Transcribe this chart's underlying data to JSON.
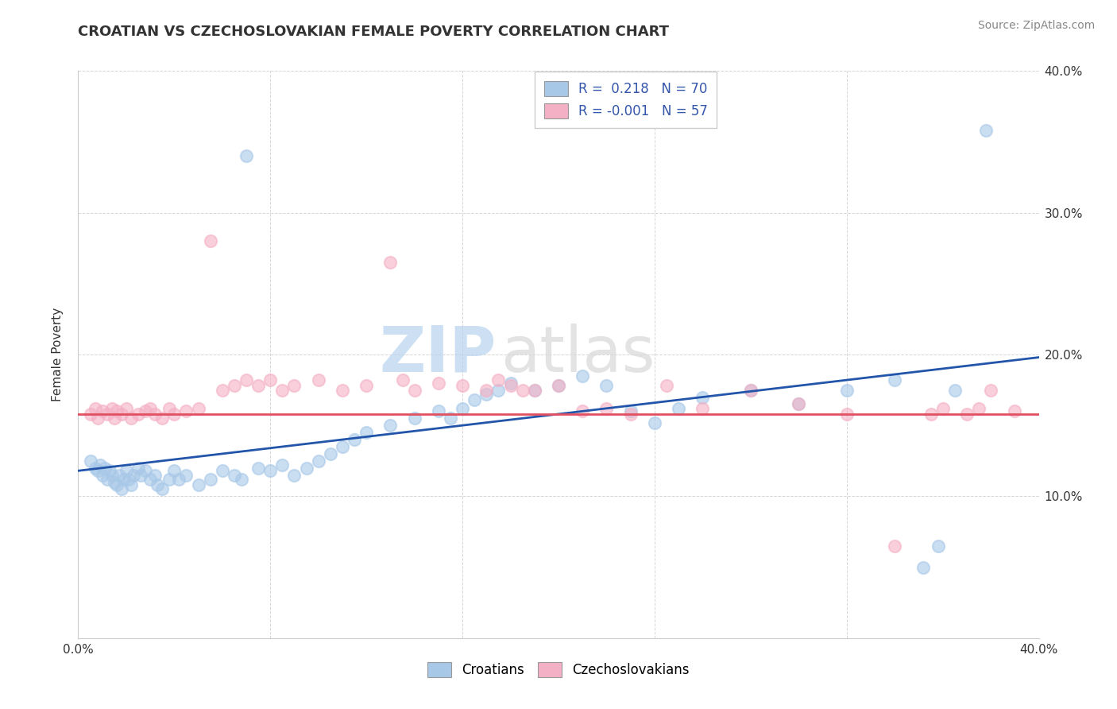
{
  "title": "CROATIAN VS CZECHOSLOVAKIAN FEMALE POVERTY CORRELATION CHART",
  "source": "Source: ZipAtlas.com",
  "ylabel": "Female Poverty",
  "xlim": [
    0.0,
    0.4
  ],
  "ylim": [
    0.0,
    0.4
  ],
  "croatian_R": 0.218,
  "croatian_N": 70,
  "czechoslovakian_R": -0.001,
  "czechoslovakian_N": 57,
  "croatian_color": "#a8c8e8",
  "czechoslovakian_color": "#f4b0c4",
  "croatian_line_color": "#2255aa",
  "czechoslovakian_line_color": "#e05060",
  "watermark_zip": "ZIP",
  "watermark_atlas": "atlas",
  "cro_line_y0": 0.118,
  "cro_line_y1": 0.198,
  "cze_line_y": 0.158,
  "cro_x": [
    0.005,
    0.007,
    0.008,
    0.009,
    0.01,
    0.011,
    0.012,
    0.013,
    0.014,
    0.015,
    0.016,
    0.017,
    0.018,
    0.019,
    0.02,
    0.021,
    0.022,
    0.023,
    0.025,
    0.026,
    0.028,
    0.03,
    0.032,
    0.033,
    0.035,
    0.038,
    0.04,
    0.042,
    0.045,
    0.05,
    0.055,
    0.06,
    0.065,
    0.068,
    0.07,
    0.075,
    0.08,
    0.085,
    0.09,
    0.095,
    0.1,
    0.105,
    0.11,
    0.115,
    0.12,
    0.13,
    0.14,
    0.15,
    0.155,
    0.16,
    0.165,
    0.17,
    0.175,
    0.18,
    0.19,
    0.2,
    0.21,
    0.22,
    0.23,
    0.24,
    0.25,
    0.26,
    0.28,
    0.3,
    0.32,
    0.34,
    0.352,
    0.358,
    0.365,
    0.378
  ],
  "cro_y": [
    0.125,
    0.12,
    0.118,
    0.122,
    0.115,
    0.12,
    0.112,
    0.118,
    0.115,
    0.11,
    0.108,
    0.115,
    0.105,
    0.112,
    0.118,
    0.112,
    0.108,
    0.115,
    0.12,
    0.115,
    0.118,
    0.112,
    0.115,
    0.108,
    0.105,
    0.112,
    0.118,
    0.112,
    0.115,
    0.108,
    0.112,
    0.118,
    0.115,
    0.112,
    0.34,
    0.12,
    0.118,
    0.122,
    0.115,
    0.12,
    0.125,
    0.13,
    0.135,
    0.14,
    0.145,
    0.15,
    0.155,
    0.16,
    0.155,
    0.162,
    0.168,
    0.172,
    0.175,
    0.18,
    0.175,
    0.178,
    0.185,
    0.178,
    0.16,
    0.152,
    0.162,
    0.17,
    0.175,
    0.165,
    0.175,
    0.182,
    0.05,
    0.065,
    0.175,
    0.358
  ],
  "cze_x": [
    0.005,
    0.007,
    0.008,
    0.01,
    0.012,
    0.014,
    0.015,
    0.016,
    0.018,
    0.02,
    0.022,
    0.025,
    0.028,
    0.03,
    0.032,
    0.035,
    0.038,
    0.04,
    0.045,
    0.05,
    0.055,
    0.06,
    0.065,
    0.07,
    0.075,
    0.08,
    0.085,
    0.09,
    0.1,
    0.11,
    0.12,
    0.13,
    0.135,
    0.14,
    0.15,
    0.16,
    0.17,
    0.175,
    0.18,
    0.185,
    0.19,
    0.2,
    0.21,
    0.22,
    0.23,
    0.245,
    0.26,
    0.28,
    0.3,
    0.32,
    0.34,
    0.355,
    0.36,
    0.37,
    0.375,
    0.38,
    0.39
  ],
  "cze_y": [
    0.158,
    0.162,
    0.155,
    0.16,
    0.158,
    0.162,
    0.155,
    0.16,
    0.158,
    0.162,
    0.155,
    0.158,
    0.16,
    0.162,
    0.158,
    0.155,
    0.162,
    0.158,
    0.16,
    0.162,
    0.28,
    0.175,
    0.178,
    0.182,
    0.178,
    0.182,
    0.175,
    0.178,
    0.182,
    0.175,
    0.178,
    0.265,
    0.182,
    0.175,
    0.18,
    0.178,
    0.175,
    0.182,
    0.178,
    0.175,
    0.175,
    0.178,
    0.16,
    0.162,
    0.158,
    0.178,
    0.162,
    0.175,
    0.165,
    0.158,
    0.065,
    0.158,
    0.162,
    0.158,
    0.162,
    0.175,
    0.16
  ]
}
